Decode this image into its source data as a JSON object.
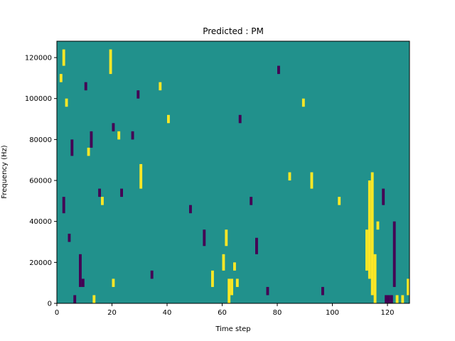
{
  "chart_data": {
    "type": "heatmap",
    "title": "Predicted : PM",
    "xlabel": "Time step",
    "ylabel": "Frequency (Hz)",
    "xlim": [
      0,
      128
    ],
    "ylim": [
      0,
      128000
    ],
    "xticks": [
      0,
      20,
      40,
      60,
      80,
      100,
      120
    ],
    "xtick_labels": [
      "0",
      "20",
      "40",
      "60",
      "80",
      "100",
      "120"
    ],
    "yticks": [
      0,
      20000,
      40000,
      60000,
      80000,
      100000,
      120000
    ],
    "ytick_labels": [
      "0",
      "20000",
      "40000",
      "60000",
      "80000",
      "100000",
      "120000"
    ],
    "colormap": "viridis",
    "colors": {
      "background": "#21918c",
      "low": "#440154",
      "high": "#fde725"
    },
    "grid": false,
    "cells": [
      {
        "t": 2,
        "f0": 116000,
        "f1": 124000,
        "v": "high"
      },
      {
        "t": 1,
        "f0": 108000,
        "f1": 112000,
        "v": "high"
      },
      {
        "t": 3,
        "f0": 96000,
        "f1": 100000,
        "v": "high"
      },
      {
        "t": 2,
        "f0": 44000,
        "f1": 52000,
        "v": "low"
      },
      {
        "t": 4,
        "f0": 30000,
        "f1": 34000,
        "v": "low"
      },
      {
        "t": 5,
        "f0": 72000,
        "f1": 80000,
        "v": "low"
      },
      {
        "t": 6,
        "f0": 0,
        "f1": 4000,
        "v": "low"
      },
      {
        "t": 8,
        "f0": 8000,
        "f1": 24000,
        "v": "low"
      },
      {
        "t": 9,
        "f0": 8000,
        "f1": 12000,
        "v": "low"
      },
      {
        "t": 10,
        "f0": 104000,
        "f1": 108000,
        "v": "low"
      },
      {
        "t": 11,
        "f0": 72000,
        "f1": 76000,
        "v": "high"
      },
      {
        "t": 12,
        "f0": 76000,
        "f1": 84000,
        "v": "low"
      },
      {
        "t": 13,
        "f0": 0,
        "f1": 4000,
        "v": "high"
      },
      {
        "t": 15,
        "f0": 52000,
        "f1": 56000,
        "v": "low"
      },
      {
        "t": 16,
        "f0": 48000,
        "f1": 52000,
        "v": "high"
      },
      {
        "t": 19,
        "f0": 112000,
        "f1": 124000,
        "v": "high"
      },
      {
        "t": 20,
        "f0": 8000,
        "f1": 12000,
        "v": "high"
      },
      {
        "t": 20,
        "f0": 84000,
        "f1": 88000,
        "v": "low"
      },
      {
        "t": 22,
        "f0": 80000,
        "f1": 84000,
        "v": "high"
      },
      {
        "t": 23,
        "f0": 52000,
        "f1": 56000,
        "v": "low"
      },
      {
        "t": 27,
        "f0": 80000,
        "f1": 84000,
        "v": "low"
      },
      {
        "t": 29,
        "f0": 100000,
        "f1": 104000,
        "v": "low"
      },
      {
        "t": 30,
        "f0": 56000,
        "f1": 68000,
        "v": "high"
      },
      {
        "t": 34,
        "f0": 12000,
        "f1": 16000,
        "v": "low"
      },
      {
        "t": 37,
        "f0": 104000,
        "f1": 108000,
        "v": "high"
      },
      {
        "t": 40,
        "f0": 88000,
        "f1": 92000,
        "v": "high"
      },
      {
        "t": 48,
        "f0": 44000,
        "f1": 48000,
        "v": "low"
      },
      {
        "t": 53,
        "f0": 28000,
        "f1": 36000,
        "v": "low"
      },
      {
        "t": 56,
        "f0": 8000,
        "f1": 16000,
        "v": "high"
      },
      {
        "t": 60,
        "f0": 16000,
        "f1": 24000,
        "v": "high"
      },
      {
        "t": 61,
        "f0": 28000,
        "f1": 36000,
        "v": "high"
      },
      {
        "t": 62,
        "f0": 0,
        "f1": 12000,
        "v": "high"
      },
      {
        "t": 63,
        "f0": 4000,
        "f1": 12000,
        "v": "high"
      },
      {
        "t": 64,
        "f0": 16000,
        "f1": 20000,
        "v": "high"
      },
      {
        "t": 65,
        "f0": 8000,
        "f1": 12000,
        "v": "high"
      },
      {
        "t": 66,
        "f0": 88000,
        "f1": 92000,
        "v": "low"
      },
      {
        "t": 70,
        "f0": 48000,
        "f1": 52000,
        "v": "low"
      },
      {
        "t": 72,
        "f0": 24000,
        "f1": 32000,
        "v": "low"
      },
      {
        "t": 76,
        "f0": 4000,
        "f1": 8000,
        "v": "low"
      },
      {
        "t": 80,
        "f0": 112000,
        "f1": 116000,
        "v": "low"
      },
      {
        "t": 84,
        "f0": 60000,
        "f1": 64000,
        "v": "high"
      },
      {
        "t": 89,
        "f0": 96000,
        "f1": 100000,
        "v": "high"
      },
      {
        "t": 92,
        "f0": 56000,
        "f1": 64000,
        "v": "high"
      },
      {
        "t": 96,
        "f0": 4000,
        "f1": 8000,
        "v": "low"
      },
      {
        "t": 102,
        "f0": 48000,
        "f1": 52000,
        "v": "high"
      },
      {
        "t": 112,
        "f0": 16000,
        "f1": 36000,
        "v": "high"
      },
      {
        "t": 113,
        "f0": 12000,
        "f1": 60000,
        "v": "high"
      },
      {
        "t": 114,
        "f0": 4000,
        "f1": 64000,
        "v": "high"
      },
      {
        "t": 115,
        "f0": 0,
        "f1": 24000,
        "v": "high"
      },
      {
        "t": 116,
        "f0": 36000,
        "f1": 40000,
        "v": "high"
      },
      {
        "t": 118,
        "f0": 48000,
        "f1": 56000,
        "v": "low"
      },
      {
        "t": 119,
        "f0": 0,
        "f1": 4000,
        "v": "low"
      },
      {
        "t": 120,
        "f0": 0,
        "f1": 4000,
        "v": "low"
      },
      {
        "t": 121,
        "f0": 0,
        "f1": 4000,
        "v": "low"
      },
      {
        "t": 122,
        "f0": 8000,
        "f1": 40000,
        "v": "low"
      },
      {
        "t": 123,
        "f0": 0,
        "f1": 4000,
        "v": "high"
      },
      {
        "t": 125,
        "f0": 0,
        "f1": 4000,
        "v": "high"
      },
      {
        "t": 127,
        "f0": 4000,
        "f1": 12000,
        "v": "high"
      }
    ]
  }
}
